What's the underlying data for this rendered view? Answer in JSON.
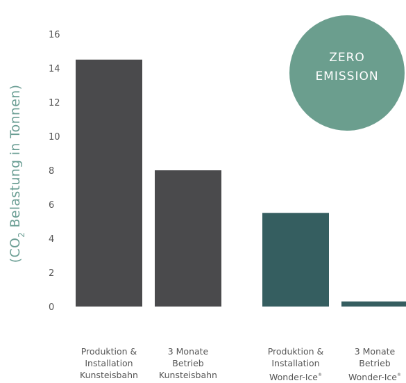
{
  "chart_data": {
    "type": "bar",
    "ylabel": "(CO₂ Belastung in Tonnen)",
    "ylabel_parts": {
      "before": "(CO",
      "sub": "2",
      "after": " Belastung in Tonnen)"
    },
    "ylim": [
      0,
      16
    ],
    "yticks": [
      "0",
      "2",
      "4",
      "6",
      "8",
      "10",
      "12",
      "14",
      "16"
    ],
    "grid": false,
    "categories": [
      {
        "lines": [
          "Produktion &",
          "Installation",
          "Kunsteisbahn"
        ],
        "sup": ""
      },
      {
        "lines": [
          "3 Monate",
          "Betrieb",
          "Kunsteisbahn"
        ],
        "sup": ""
      },
      {
        "lines": [
          "Produktion &",
          "Installation",
          "Wonder-Ice"
        ],
        "sup": "®"
      },
      {
        "lines": [
          "3 Monate",
          "Betrieb",
          "Wonder-Ice"
        ],
        "sup": "®"
      }
    ],
    "values": [
      14.5,
      8.0,
      5.5,
      0.3
    ],
    "bar_colors": [
      "#4a4a4c",
      "#4a4a4c",
      "#355e60",
      "#355e60"
    ]
  },
  "badge": {
    "line1": "ZERO",
    "line2": "EMISSION",
    "color": "#6b9e8e"
  }
}
